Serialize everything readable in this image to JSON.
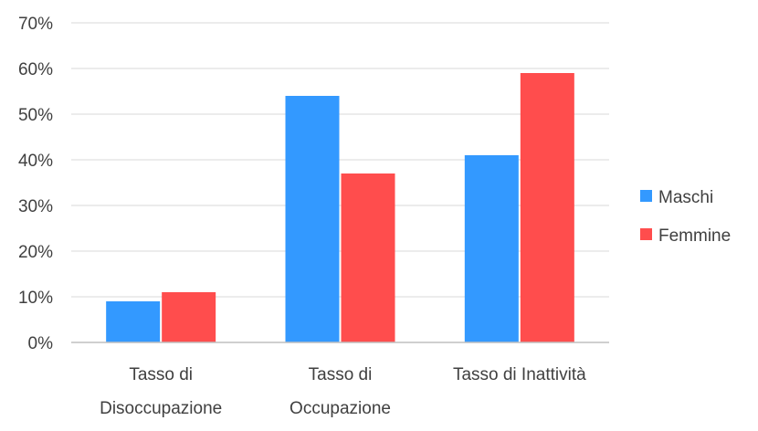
{
  "chart_data": {
    "type": "bar",
    "categories": [
      [
        "Tasso di",
        "Disoccupazione"
      ],
      [
        "Tasso di",
        "Occupazione"
      ],
      [
        "Tasso di Inattività"
      ]
    ],
    "series": [
      {
        "name": "Maschi",
        "values": [
          9,
          54,
          41
        ],
        "color": "#3399FF"
      },
      {
        "name": "Femmine",
        "values": [
          11,
          37,
          59
        ],
        "color": "#FF4D4D"
      }
    ],
    "ylim": [
      0,
      70
    ],
    "yticks": [
      "0%",
      "10%",
      "20%",
      "30%",
      "40%",
      "50%",
      "60%",
      "70%"
    ],
    "grid": true,
    "legend_position": "right",
    "title": "",
    "xlabel": "",
    "ylabel": ""
  }
}
